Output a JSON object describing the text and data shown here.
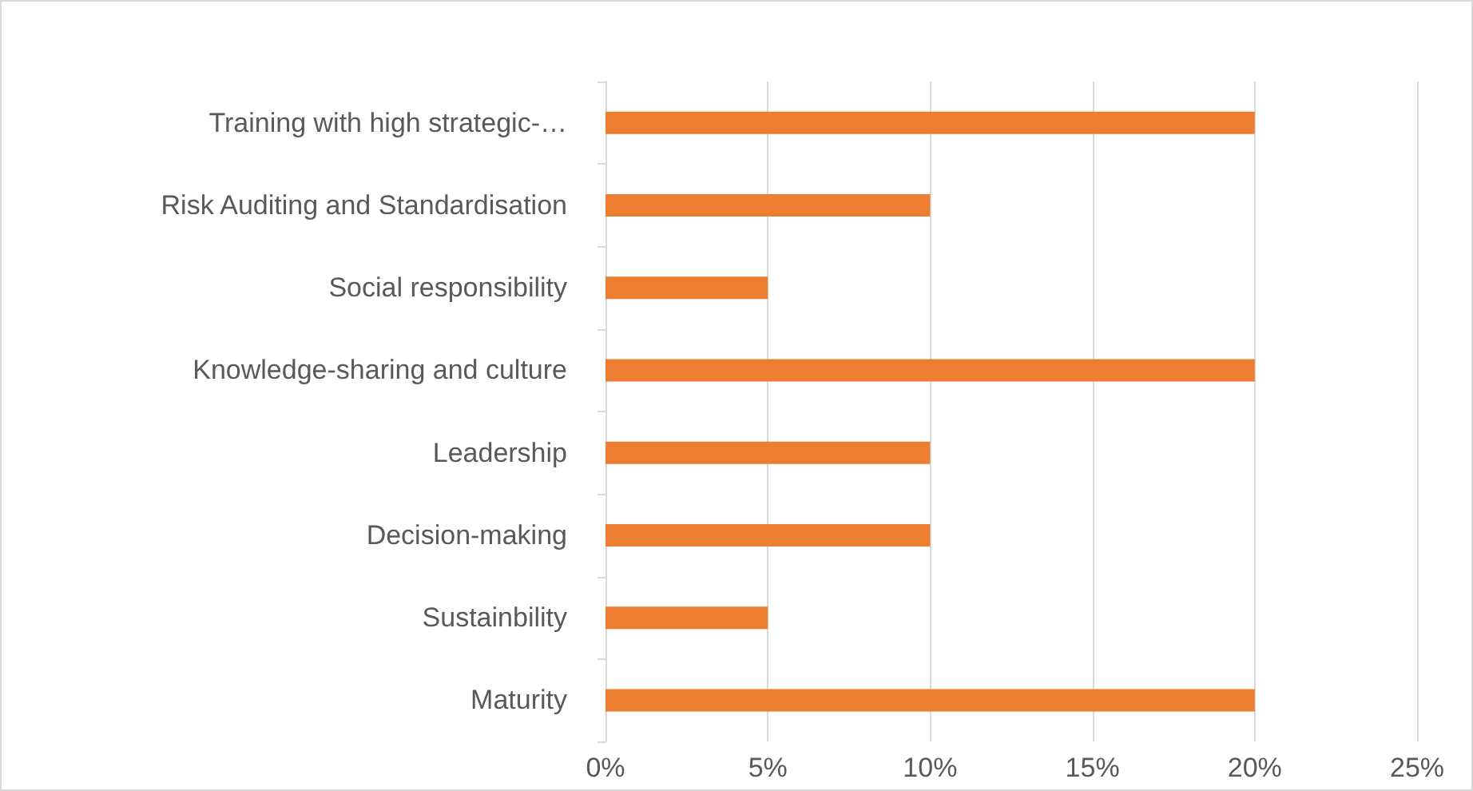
{
  "chart_data": {
    "type": "bar",
    "orientation": "horizontal",
    "categories": [
      "Training with high strategic-…",
      "Risk Auditing and Standardisation",
      "Social responsibility",
      "Knowledge-sharing and culture",
      "Leadership",
      "Decision-making",
      "Sustainbility",
      "Maturity"
    ],
    "values": [
      20,
      10,
      5,
      20,
      10,
      10,
      5,
      20
    ],
    "color": "#ed7d31",
    "xlim": [
      0,
      25
    ],
    "xticks": [
      {
        "value": 0,
        "label": "0%"
      },
      {
        "value": 5,
        "label": "5%"
      },
      {
        "value": 10,
        "label": "10%"
      },
      {
        "value": 15,
        "label": "15%"
      },
      {
        "value": 20,
        "label": "20%"
      },
      {
        "value": 25,
        "label": "25%"
      }
    ],
    "grid": "x"
  }
}
